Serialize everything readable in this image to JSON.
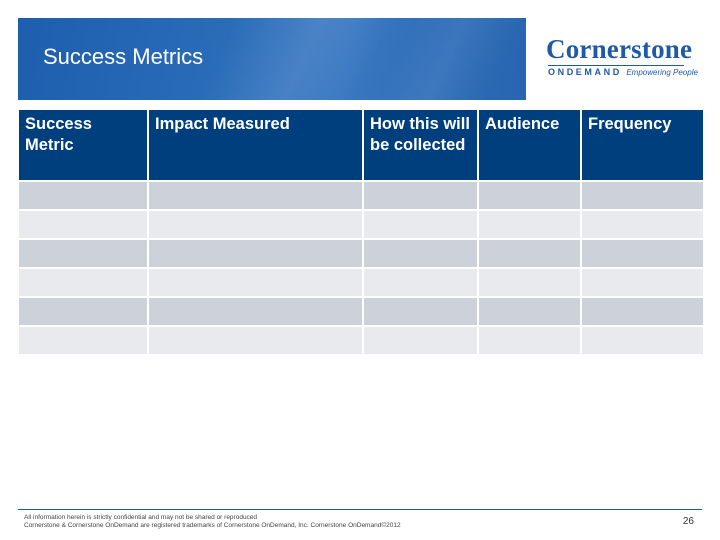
{
  "header": {
    "title": "Success Metrics",
    "logo": {
      "name": "Cornerstone",
      "sub": "ONDEMAND",
      "tagline": "Empowering People"
    }
  },
  "table": {
    "columns": [
      "Success Metric",
      "Impact Measured",
      "How this will be collected",
      "Audience",
      "Frequency"
    ],
    "rows": [
      [
        "",
        "",
        "",
        "",
        ""
      ],
      [
        "",
        "",
        "",
        "",
        ""
      ],
      [
        "",
        "",
        "",
        "",
        ""
      ],
      [
        "",
        "",
        "",
        "",
        ""
      ],
      [
        "",
        "",
        "",
        "",
        ""
      ],
      [
        "",
        "",
        "",
        "",
        ""
      ]
    ]
  },
  "footer": {
    "line1": "All information herein is strictly confidential and may not be shared or reproduced",
    "line2": "Cornerstone & Cornerstone OnDemand are registered trademarks of Cornerstone OnDemand, Inc. Cornerstone OnDemand©2012",
    "page_number": "26"
  },
  "colors": {
    "banner": "#1f5aa6",
    "header_cell": "#003f7d",
    "row_dark": "#cdd2da",
    "row_light": "#e8eaee"
  }
}
